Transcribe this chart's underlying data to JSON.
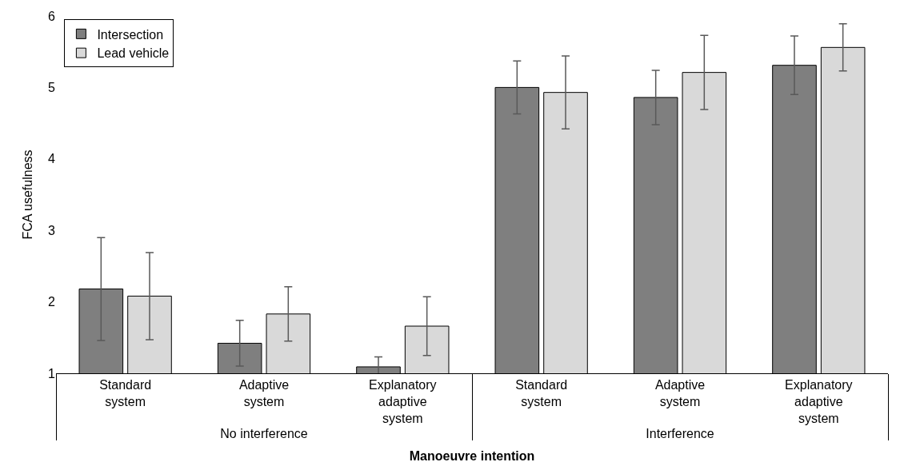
{
  "chart_data": {
    "type": "bar",
    "xlabel": "Manoeuvre intention",
    "ylabel": "FCA usefulness",
    "categories": [
      "Standard system",
      "Adaptive system",
      "Explanatory adaptive system",
      "Standard system",
      "Adaptive system",
      "Explanatory adaptive system"
    ],
    "annotations": [
      "No interference",
      "Interference"
    ],
    "series": [
      {
        "name": "Intersection",
        "color": "#7f7f7f",
        "values": [
          2.18,
          1.42,
          1.09,
          5.0,
          4.86,
          5.31
        ],
        "errors": [
          0.72,
          0.32,
          0.14,
          0.37,
          0.38,
          0.41
        ]
      },
      {
        "name": "Lead vehicle",
        "color": "#d9d9d9",
        "values": [
          2.08,
          1.83,
          1.66,
          4.93,
          5.21,
          5.56
        ],
        "errors": [
          0.61,
          0.38,
          0.41,
          0.51,
          0.52,
          0.33
        ]
      }
    ],
    "ylim": [
      1,
      6
    ],
    "yticks": [
      1,
      2,
      3,
      4,
      5,
      6
    ],
    "legend": "top left"
  }
}
